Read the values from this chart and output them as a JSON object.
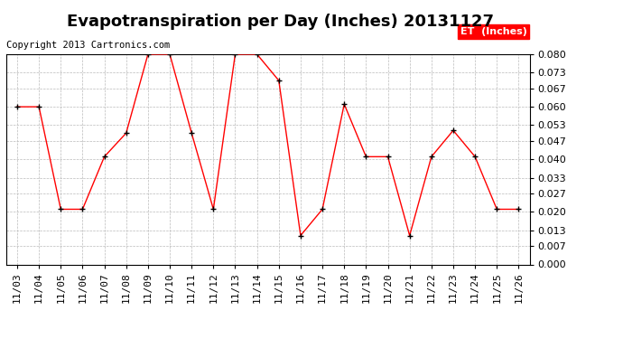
{
  "title": "Evapotranspiration per Day (Inches) 20131127",
  "copyright_text": "Copyright 2013 Cartronics.com",
  "legend_label": "ET  (Inches)",
  "dates": [
    "11/03",
    "11/04",
    "11/05",
    "11/06",
    "11/07",
    "11/08",
    "11/09",
    "11/10",
    "11/11",
    "11/12",
    "11/13",
    "11/14",
    "11/15",
    "11/16",
    "11/17",
    "11/18",
    "11/19",
    "11/20",
    "11/21",
    "11/22",
    "11/23",
    "11/24",
    "11/25",
    "11/26"
  ],
  "values": [
    0.06,
    0.06,
    0.021,
    0.021,
    0.041,
    0.05,
    0.08,
    0.08,
    0.05,
    0.021,
    0.08,
    0.08,
    0.07,
    0.011,
    0.021,
    0.061,
    0.041,
    0.041,
    0.011,
    0.041,
    0.051,
    0.041,
    0.021,
    0.021
  ],
  "ylim": [
    0.0,
    0.08
  ],
  "yticks": [
    0.0,
    0.007,
    0.013,
    0.02,
    0.027,
    0.033,
    0.04,
    0.047,
    0.053,
    0.06,
    0.067,
    0.073,
    0.08
  ],
  "line_color": "red",
  "marker_color": "black",
  "bg_color": "#ffffff",
  "grid_color": "#bbbbbb",
  "legend_bg": "red",
  "legend_text_color": "white",
  "title_fontsize": 13,
  "copyright_fontsize": 7.5,
  "tick_fontsize": 8,
  "border_color": "#000000"
}
